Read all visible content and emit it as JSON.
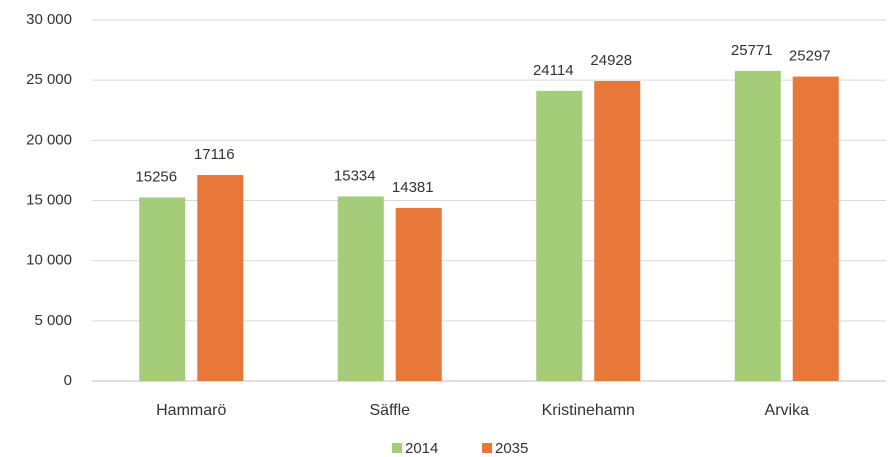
{
  "chart_data": {
    "type": "bar",
    "categories": [
      "Hammarö",
      "Säffle",
      "Kristinehamn",
      "Arvika"
    ],
    "series": [
      {
        "name": "2014",
        "color": "#a4cc79",
        "values": [
          15256,
          15334,
          24114,
          25771
        ]
      },
      {
        "name": "2035",
        "color": "#e8773a",
        "values": [
          17116,
          14381,
          24928,
          25297
        ]
      }
    ],
    "ylim": [
      0,
      30000
    ],
    "yticks": [
      {
        "value": 0,
        "label": "0"
      },
      {
        "value": 5000,
        "label": "5 000"
      },
      {
        "value": 10000,
        "label": "10 000"
      },
      {
        "value": 15000,
        "label": "15 000"
      },
      {
        "value": 20000,
        "label": "20 000"
      },
      {
        "value": 25000,
        "label": "25 000"
      },
      {
        "value": 30000,
        "label": "30 000"
      }
    ],
    "grid": true,
    "legend": "bottom"
  }
}
